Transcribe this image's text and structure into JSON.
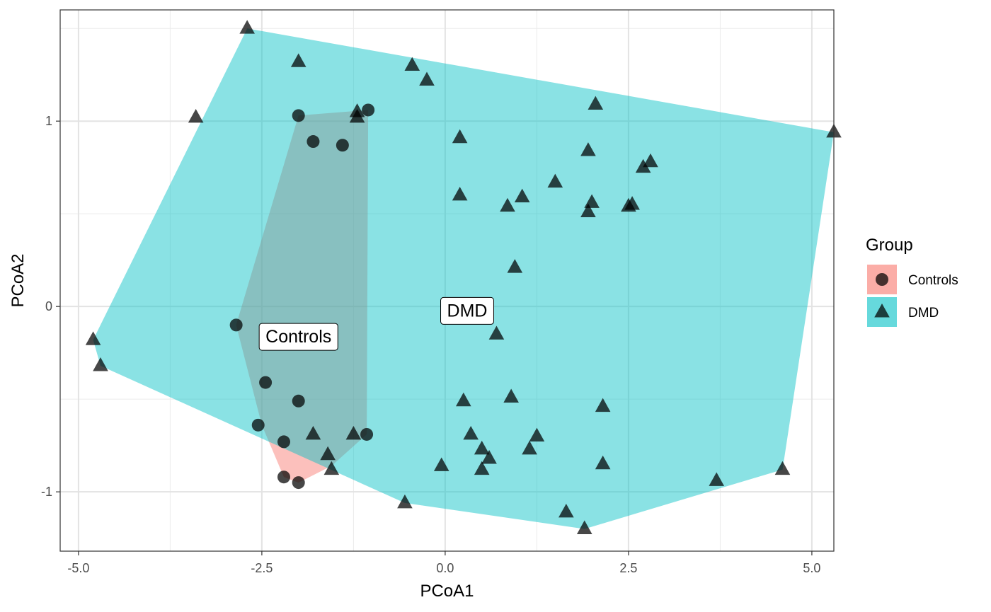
{
  "chart_data": {
    "type": "scatter",
    "xlabel": "PCoA1",
    "ylabel": "PCoA2",
    "xlim": [
      -5.25,
      5.3
    ],
    "ylim": [
      -1.32,
      1.6
    ],
    "x_ticks": [
      -5.0,
      -2.5,
      0.0,
      2.5,
      5.0
    ],
    "x_tick_labels": [
      "-5.0",
      "-2.5",
      "0.0",
      "2.5",
      "5.0"
    ],
    "y_ticks": [
      -1,
      0,
      1
    ],
    "y_tick_labels": [
      "-1",
      "0",
      "1"
    ],
    "grid": true,
    "legend": {
      "title": "Group",
      "position": "right",
      "entries": [
        {
          "label": "Controls",
          "fill": "#F8766D",
          "shape": "circle"
        },
        {
          "label": "DMD",
          "fill": "#00BFC4",
          "shape": "triangle"
        }
      ]
    },
    "series": [
      {
        "name": "Controls",
        "shape": "circle",
        "fill": "#F8766D",
        "hull": [
          [
            -2.0,
            1.03
          ],
          [
            -1.05,
            1.06
          ],
          [
            -1.07,
            -0.69
          ],
          [
            -1.55,
            -0.86
          ],
          [
            -2.0,
            -0.95
          ],
          [
            -2.2,
            -0.92
          ],
          [
            -2.5,
            -0.64
          ],
          [
            -2.85,
            -0.1
          ]
        ],
        "label": {
          "text": "Controls",
          "x": -2.0,
          "y": -0.16
        },
        "points": [
          {
            "x": -2.0,
            "y": 1.03
          },
          {
            "x": -1.05,
            "y": 1.06
          },
          {
            "x": -1.8,
            "y": 0.89
          },
          {
            "x": -1.4,
            "y": 0.87
          },
          {
            "x": -2.85,
            "y": -0.1
          },
          {
            "x": -2.45,
            "y": -0.41
          },
          {
            "x": -2.0,
            "y": -0.51
          },
          {
            "x": -2.55,
            "y": -0.64
          },
          {
            "x": -2.2,
            "y": -0.73
          },
          {
            "x": -1.07,
            "y": -0.69
          },
          {
            "x": -2.2,
            "y": -0.92
          },
          {
            "x": -2.0,
            "y": -0.95
          }
        ]
      },
      {
        "name": "DMD",
        "shape": "triangle",
        "fill": "#00BFC4",
        "hull": [
          [
            -2.7,
            1.5
          ],
          [
            5.3,
            0.94
          ],
          [
            4.6,
            -0.88
          ],
          [
            1.9,
            -1.2
          ],
          [
            -0.55,
            -1.06
          ],
          [
            -4.7,
            -0.32
          ],
          [
            -4.8,
            -0.18
          ]
        ],
        "label": {
          "text": "DMD",
          "x": 0.3,
          "y": -0.02
        },
        "points": [
          {
            "x": -2.7,
            "y": 1.5
          },
          {
            "x": -2.0,
            "y": 1.32
          },
          {
            "x": -0.45,
            "y": 1.3
          },
          {
            "x": -0.25,
            "y": 1.22
          },
          {
            "x": -3.4,
            "y": 1.02
          },
          {
            "x": -1.2,
            "y": 1.05
          },
          {
            "x": -1.2,
            "y": 1.02
          },
          {
            "x": 2.05,
            "y": 1.09
          },
          {
            "x": 5.3,
            "y": 0.94
          },
          {
            "x": 0.2,
            "y": 0.91
          },
          {
            "x": 1.95,
            "y": 0.84
          },
          {
            "x": 2.8,
            "y": 0.78
          },
          {
            "x": 2.7,
            "y": 0.75
          },
          {
            "x": 1.5,
            "y": 0.67
          },
          {
            "x": 0.2,
            "y": 0.6
          },
          {
            "x": 1.05,
            "y": 0.59
          },
          {
            "x": 0.85,
            "y": 0.54
          },
          {
            "x": 2.0,
            "y": 0.56
          },
          {
            "x": 1.95,
            "y": 0.51
          },
          {
            "x": 2.55,
            "y": 0.55
          },
          {
            "x": 2.5,
            "y": 0.54
          },
          {
            "x": 0.95,
            "y": 0.21
          },
          {
            "x": 0.7,
            "y": -0.15
          },
          {
            "x": -4.8,
            "y": -0.18
          },
          {
            "x": -4.7,
            "y": -0.32
          },
          {
            "x": 0.25,
            "y": -0.51
          },
          {
            "x": 0.9,
            "y": -0.49
          },
          {
            "x": 2.15,
            "y": -0.54
          },
          {
            "x": -1.8,
            "y": -0.69
          },
          {
            "x": -1.25,
            "y": -0.69
          },
          {
            "x": 0.35,
            "y": -0.69
          },
          {
            "x": 1.25,
            "y": -0.7
          },
          {
            "x": 1.15,
            "y": -0.77
          },
          {
            "x": 0.5,
            "y": -0.77
          },
          {
            "x": -1.6,
            "y": -0.8
          },
          {
            "x": 0.6,
            "y": -0.82
          },
          {
            "x": -0.05,
            "y": -0.86
          },
          {
            "x": 2.15,
            "y": -0.85
          },
          {
            "x": 0.5,
            "y": -0.88
          },
          {
            "x": -1.55,
            "y": -0.88
          },
          {
            "x": 4.6,
            "y": -0.88
          },
          {
            "x": 3.7,
            "y": -0.94
          },
          {
            "x": -0.55,
            "y": -1.06
          },
          {
            "x": 1.65,
            "y": -1.11
          },
          {
            "x": 1.9,
            "y": -1.2
          }
        ]
      }
    ]
  }
}
